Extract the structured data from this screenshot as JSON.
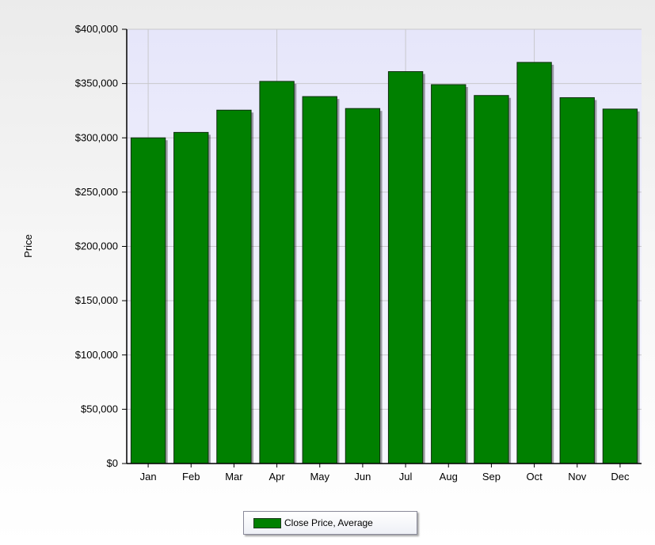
{
  "chart_data": {
    "type": "bar",
    "categories": [
      "Jan",
      "Feb",
      "Mar",
      "Apr",
      "May",
      "Jun",
      "Jul",
      "Aug",
      "Sep",
      "Oct",
      "Nov",
      "Dec"
    ],
    "series": [
      {
        "name": "Close Price, Average",
        "values": [
          300000,
          305000,
          325500,
          352000,
          338000,
          327000,
          361000,
          349000,
          339000,
          369500,
          337000,
          326500
        ],
        "color": "#008000"
      }
    ],
    "ylabel": "Price",
    "xlabel": "",
    "ylim": [
      0,
      400000
    ],
    "yticks": [
      0,
      50000,
      100000,
      150000,
      200000,
      250000,
      300000,
      350000,
      400000
    ],
    "ytick_labels": [
      "$0",
      "$50,000",
      "$100,000",
      "$150,000",
      "$200,000",
      "$250,000",
      "$300,000",
      "$350,000",
      "$400,000"
    ],
    "grid": true,
    "legend_position": "bottom-center",
    "plot_background": "#eeeefc"
  }
}
